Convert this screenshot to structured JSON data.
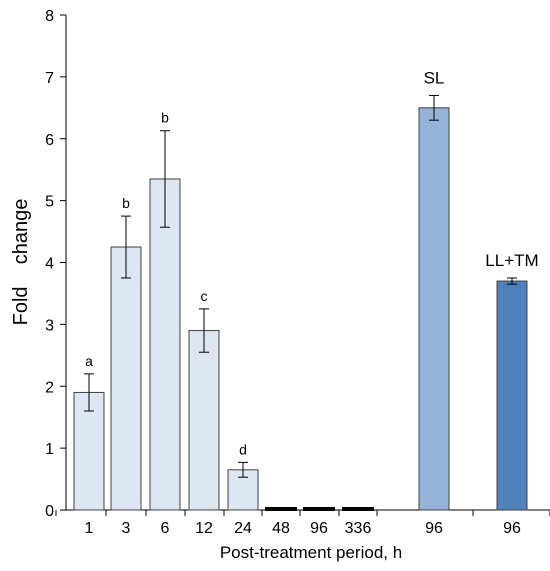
{
  "chart_data": {
    "type": "bar",
    "title": "",
    "xlabel": "Post-treatment period, h",
    "ylabel": "Fold    change",
    "ylim": [
      0,
      8
    ],
    "yticks": [
      0,
      1,
      2,
      3,
      4,
      5,
      6,
      7,
      8
    ],
    "grid": false,
    "categories": [
      "1",
      "3",
      "6",
      "12",
      "24",
      "48",
      "96",
      "336",
      "96",
      "96"
    ],
    "values": [
      1.9,
      4.25,
      5.35,
      2.9,
      0.65,
      0.02,
      0.02,
      0.02,
      6.5,
      3.7
    ],
    "errors": [
      0.3,
      0.5,
      0.78,
      0.35,
      0.12,
      0,
      0,
      0,
      0.2,
      0.05
    ],
    "significance_letters": [
      "a",
      "b",
      "b",
      "c",
      "d",
      "",
      "",
      "",
      "",
      ""
    ],
    "group_labels": [
      "",
      "",
      "",
      "",
      "",
      "",
      "",
      "",
      "SL",
      "LL+TM"
    ],
    "bar_colors": [
      "#dde6f2",
      "#dde6f2",
      "#dde6f2",
      "#dde6f2",
      "#dde6f2",
      "#dde6f2",
      "#dde6f2",
      "#dde6f2",
      "#95b3d7",
      "#4f81bd"
    ]
  }
}
